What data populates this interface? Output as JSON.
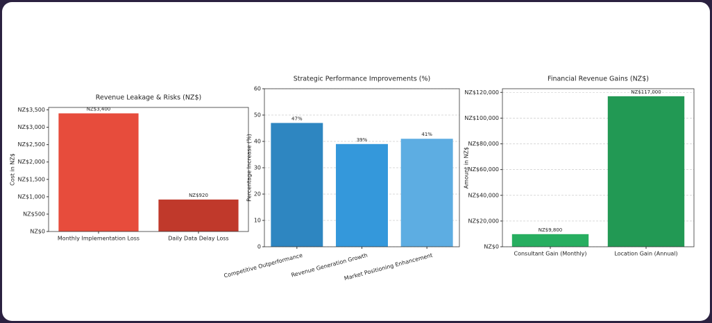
{
  "chart_data": [
    {
      "type": "bar",
      "title": "Revenue Leakage & Risks (NZ$)",
      "ylabel": "Cost in NZ$",
      "categories": [
        "Monthly Implementation Loss",
        "Daily Data Delay Loss"
      ],
      "values": [
        3400,
        920
      ],
      "value_labels": [
        "NZ$3,400",
        "NZ$920"
      ],
      "colors": [
        "#e74c3c",
        "#c0392b"
      ],
      "ylim": [
        0,
        3570
      ],
      "yticks": [
        {
          "value": 0,
          "label": "NZ$0"
        },
        {
          "value": 500,
          "label": "NZ$500"
        },
        {
          "value": 1000,
          "label": "NZ$1,000"
        },
        {
          "value": 1500,
          "label": "NZ$1,500"
        },
        {
          "value": 2000,
          "label": "NZ$2,000"
        },
        {
          "value": 2500,
          "label": "NZ$2,500"
        },
        {
          "value": 3000,
          "label": "NZ$3,000"
        },
        {
          "value": 3500,
          "label": "NZ$3,500"
        }
      ],
      "grid": false,
      "xtick_rotation": 0
    },
    {
      "type": "bar",
      "title": "Strategic Performance Improvements (%)",
      "ylabel": "Percentage Increase (%)",
      "categories": [
        "Competitive Outperformance",
        "Revenue Generation Growth",
        "Market Positioning Enhancement"
      ],
      "values": [
        47,
        39,
        41
      ],
      "value_labels": [
        "47%",
        "39%",
        "41%"
      ],
      "colors": [
        "#2e86c1",
        "#3498db",
        "#5dade2"
      ],
      "ylim": [
        0,
        60
      ],
      "yticks": [
        0,
        10,
        20,
        30,
        40,
        50,
        60
      ],
      "grid": true,
      "xtick_rotation": -15
    },
    {
      "type": "bar",
      "title": "Financial Revenue Gains (NZ$)",
      "ylabel": "Amount in NZ$",
      "categories": [
        "Consultant Gain (Monthly)",
        "Location Gain (Annual)"
      ],
      "values": [
        9800,
        117000
      ],
      "value_labels": [
        "NZ$9,800",
        "NZ$117,000"
      ],
      "colors": [
        "#27ae60",
        "#229954"
      ],
      "ylim": [
        0,
        122850
      ],
      "yticks": [
        {
          "value": 0,
          "label": "NZ$0"
        },
        {
          "value": 20000,
          "label": "NZ$20,000"
        },
        {
          "value": 40000,
          "label": "NZ$40,000"
        },
        {
          "value": 60000,
          "label": "NZ$60,000"
        },
        {
          "value": 80000,
          "label": "NZ$80,000"
        },
        {
          "value": 100000,
          "label": "NZ$100,000"
        },
        {
          "value": 120000,
          "label": "NZ$120,000"
        }
      ],
      "grid": true,
      "xtick_rotation": 0
    }
  ]
}
